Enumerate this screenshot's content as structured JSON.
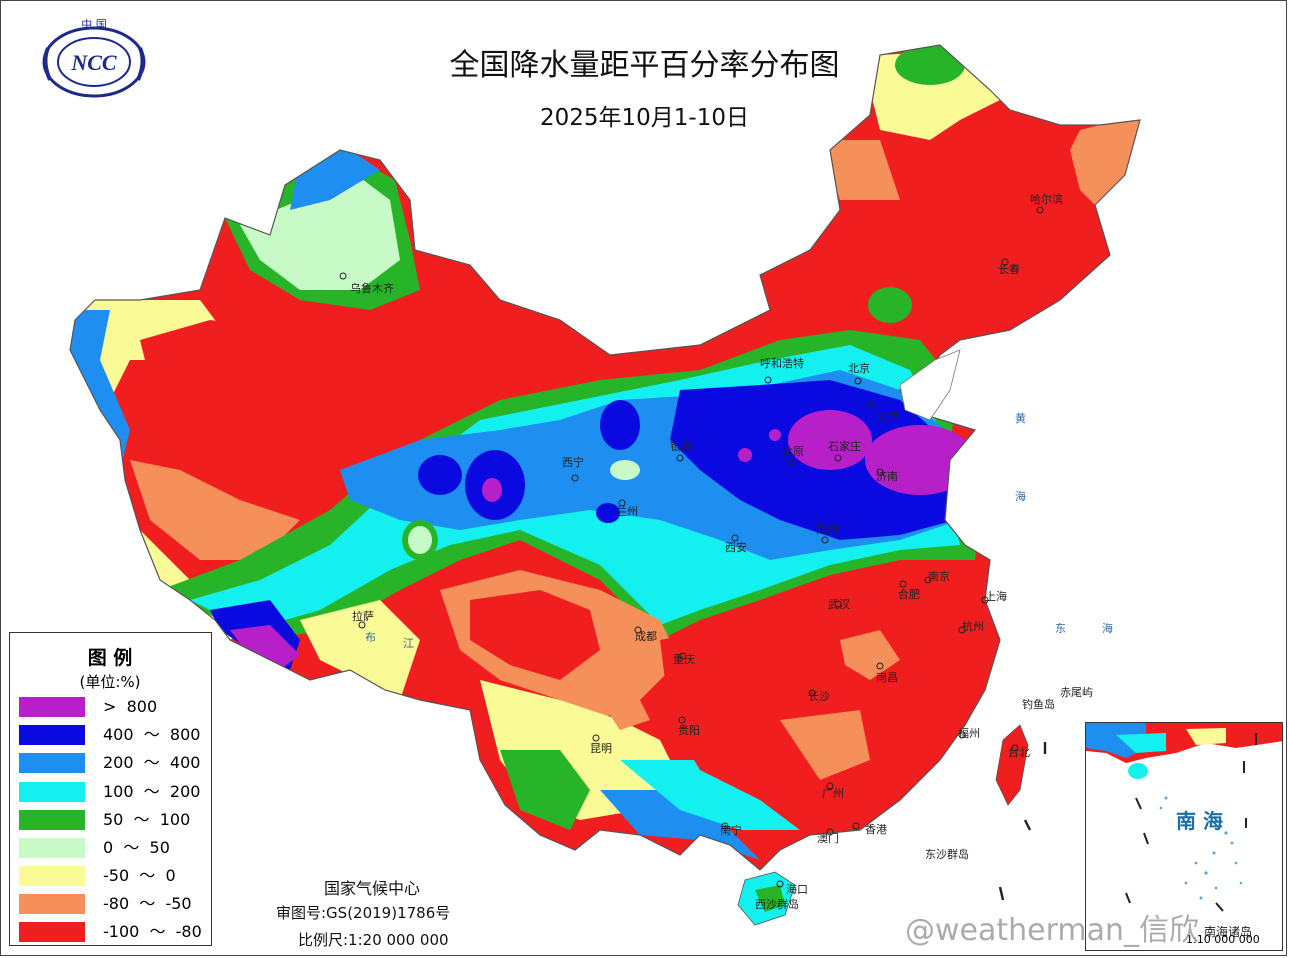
{
  "title": "全国降水量距平百分率分布图",
  "subtitle": "2025年10月1-10日",
  "logo": {
    "top_text": "中 国",
    "acronym": "NCC"
  },
  "legend": {
    "title": "图  例",
    "unit": "(单位:%)",
    "items": [
      {
        "label": ">  800",
        "color": "#b71fc9"
      },
      {
        "label": "400  ～  800",
        "color": "#0a0ae0"
      },
      {
        "label": "200  ～  400",
        "color": "#1e8ff0"
      },
      {
        "label": "100  ～  200",
        "color": "#14f0f0"
      },
      {
        "label": "50  ～  100",
        "color": "#28b428"
      },
      {
        "label": "0  ～  50",
        "color": "#c8fac8"
      },
      {
        "label": "-50  ～  0",
        "color": "#fafa96"
      },
      {
        "label": "-80  ～  -50",
        "color": "#f5905a"
      },
      {
        "label": "-100  ～  -80",
        "color": "#f01e1e"
      }
    ]
  },
  "credits": {
    "agency": "国家气候中心",
    "review_no": "审图号:GS(2019)1786号",
    "scale": "比例尺:1:20 000 000"
  },
  "cities": [
    "乌鲁木齐",
    "呼和浩特",
    "北京",
    "天津",
    "哈尔滨",
    "长春",
    "银川",
    "西宁",
    "兰州",
    "太原",
    "石家庄",
    "济南",
    "郑州",
    "西安",
    "南京",
    "合肥",
    "上海",
    "武汉",
    "杭州",
    "成都",
    "重庆",
    "拉萨",
    "长沙",
    "南昌",
    "贵阳",
    "福州",
    "台北",
    "昆明",
    "广州",
    "南宁",
    "澳门",
    "香港",
    "海口"
  ],
  "sea_labels": [
    "黄",
    "海",
    "东",
    "海",
    "赤尾屿",
    "钓鱼岛",
    "东沙群岛",
    "西沙群岛"
  ],
  "province_labels": [
    "布",
    "江"
  ],
  "inset": {
    "sea_label": "南 海",
    "name": "南海诸岛",
    "scale": "1:10 000 000"
  },
  "watermark": "@weatherman_信欣"
}
